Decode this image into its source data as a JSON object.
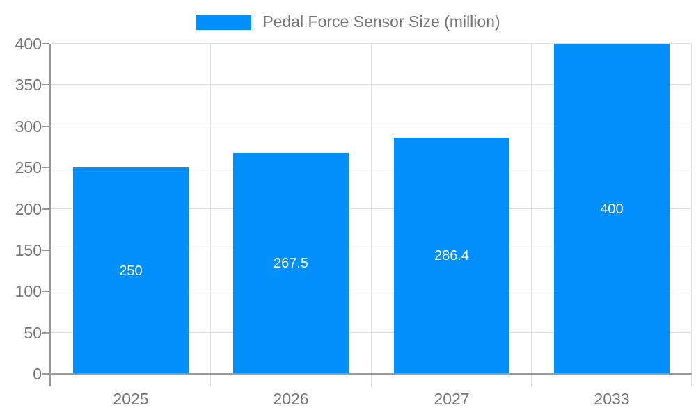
{
  "chart_data": {
    "type": "bar",
    "title": "Pedal Force Sensor Size (million)",
    "legend_position": "top",
    "categories": [
      "2025",
      "2026",
      "2027",
      "2033"
    ],
    "values": [
      250,
      267.5,
      286.4,
      400
    ],
    "bar_labels": [
      "250",
      "267.5",
      "286.4",
      "400"
    ],
    "xlabel": "",
    "ylabel": "",
    "ylim": [
      0,
      400
    ],
    "yticks": [
      0,
      50,
      100,
      150,
      200,
      250,
      300,
      350,
      400
    ],
    "grid": true,
    "colors": {
      "bar": "#008FFB",
      "bar_label_text": "#FFFFFF",
      "axis_label_text": "#757575",
      "axis_line": "#999999",
      "gridline": "#E0E0E0",
      "background": "#FFFFFF"
    }
  }
}
